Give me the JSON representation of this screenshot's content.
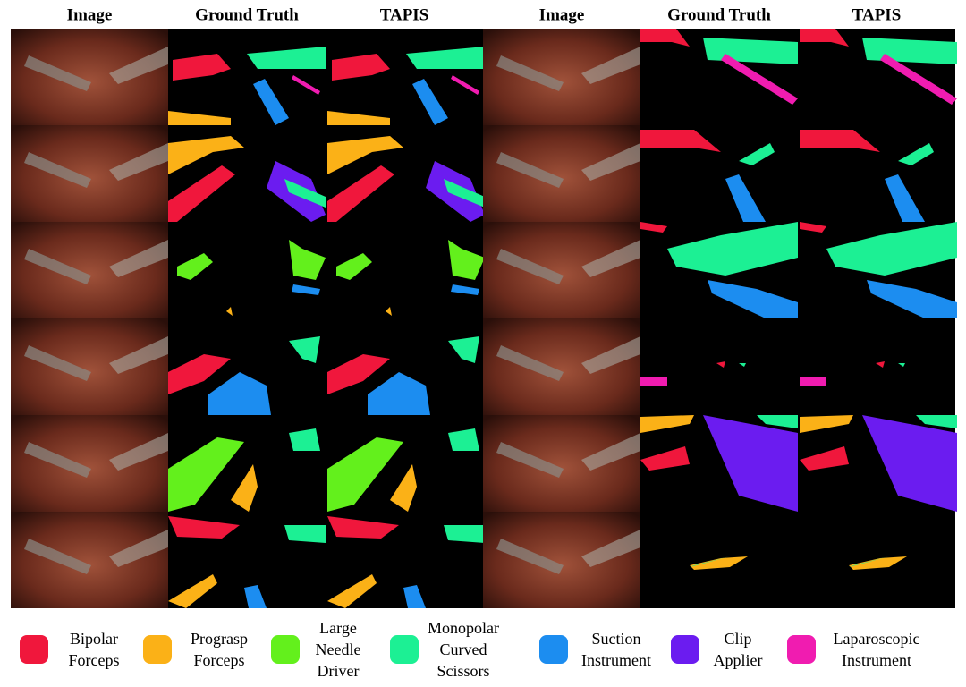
{
  "headers": [
    "Image",
    "Ground Truth",
    "TAPIS",
    "Image",
    "Ground Truth",
    "TAPIS"
  ],
  "legend": [
    {
      "label": [
        "Bipolar",
        "Forceps"
      ],
      "color": "#f0173c"
    },
    {
      "label": [
        "Prograsp",
        "Forceps"
      ],
      "color": "#fbb117"
    },
    {
      "label": [
        "Large",
        "Needle",
        "Driver"
      ],
      "color": "#63f01c"
    },
    {
      "label": [
        "Monopolar",
        "Curved",
        "Scissors"
      ],
      "color": "#1cf094"
    },
    {
      "label": [
        "Suction",
        "Instrument"
      ],
      "color": "#1c8df0"
    },
    {
      "label": [
        "Clip",
        "Applier"
      ],
      "color": "#6b1cf0"
    },
    {
      "label": [
        "Laparoscopic",
        "Instrument"
      ],
      "color": "#f01cb0"
    }
  ]
}
